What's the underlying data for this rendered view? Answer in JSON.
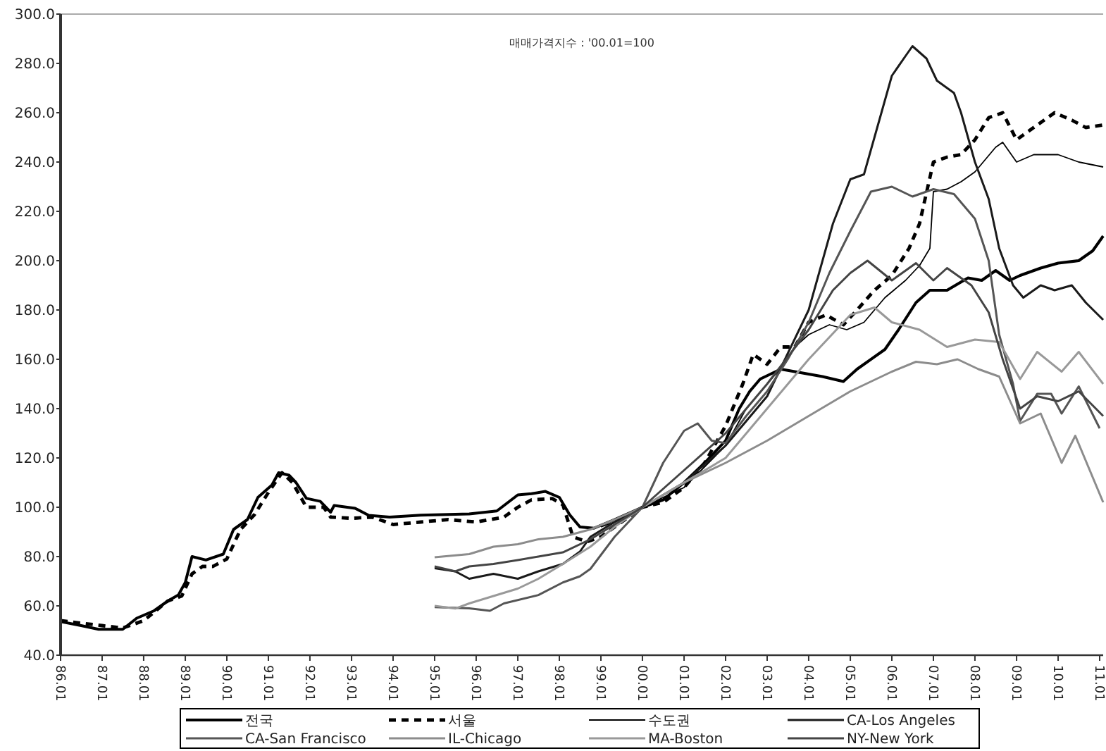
{
  "chart_data": {
    "type": "line",
    "title": "매매가격지수 : '00.01=100",
    "xlim": [
      "1986-01",
      "2011-02"
    ],
    "xticks": [
      {
        "value": "1986-01",
        "label": "86.01"
      },
      {
        "value": "1987-01",
        "label": "87.01"
      },
      {
        "value": "1988-01",
        "label": "88.01"
      },
      {
        "value": "1989-01",
        "label": "89.01"
      },
      {
        "value": "1990-01",
        "label": "90.01"
      },
      {
        "value": "1991-01",
        "label": "91.01"
      },
      {
        "value": "1992-01",
        "label": "92.01"
      },
      {
        "value": "1993-01",
        "label": "93.01"
      },
      {
        "value": "1994-01",
        "label": "94.01"
      },
      {
        "value": "1995-01",
        "label": "95.01"
      },
      {
        "value": "1996-01",
        "label": "96.01"
      },
      {
        "value": "1997-01",
        "label": "97.01"
      },
      {
        "value": "1998-01",
        "label": "98.01"
      },
      {
        "value": "1999-01",
        "label": "99.01"
      },
      {
        "value": "2000-01",
        "label": "00.01"
      },
      {
        "value": "2001-01",
        "label": "01.01"
      },
      {
        "value": "2002-01",
        "label": "02.01"
      },
      {
        "value": "2003-01",
        "label": "03.01"
      },
      {
        "value": "2004-01",
        "label": "04.01"
      },
      {
        "value": "2005-01",
        "label": "05.01"
      },
      {
        "value": "2006-01",
        "label": "06.01"
      },
      {
        "value": "2007-01",
        "label": "07.01"
      },
      {
        "value": "2008-01",
        "label": "08.01"
      },
      {
        "value": "2009-01",
        "label": "09.01"
      },
      {
        "value": "2010-01",
        "label": "10.01"
      },
      {
        "value": "2011-01",
        "label": "11.01"
      }
    ],
    "ylim": [
      40,
      300
    ],
    "yticks": [
      {
        "value": 40,
        "label": "40.0"
      },
      {
        "value": 60,
        "label": "60.0"
      },
      {
        "value": 80,
        "label": "80.0"
      },
      {
        "value": 100,
        "label": "100.0"
      },
      {
        "value": 120,
        "label": "120.0"
      },
      {
        "value": 140,
        "label": "140.0"
      },
      {
        "value": 160,
        "label": "160.0"
      },
      {
        "value": 180,
        "label": "180.0"
      },
      {
        "value": 200,
        "label": "200.0"
      },
      {
        "value": 220,
        "label": "220.0"
      },
      {
        "value": 240,
        "label": "240.0"
      },
      {
        "value": 260,
        "label": "260.0"
      },
      {
        "value": 280,
        "label": "280.0"
      },
      {
        "value": 300,
        "label": "300.0"
      }
    ],
    "grid": false,
    "legend": "bottom",
    "marker": "none",
    "series": [
      {
        "name": "전국",
        "color": "#000000",
        "line_style": "solid",
        "x": [
          "1986-01",
          "1986-07",
          "1986-12",
          "1987-07",
          "1987-11",
          "1988-04",
          "1988-08",
          "1988-11",
          "1989-01",
          "1989-03",
          "1989-07",
          "1989-12",
          "1990-03",
          "1990-07",
          "1990-10",
          "1991-02",
          "1991-04",
          "1991-07",
          "1991-09",
          "1991-12",
          "1992-04",
          "1992-07",
          "1992-08",
          "1993-02",
          "1993-06",
          "1993-12",
          "1994-09",
          "1995-11",
          "1996-07",
          "1997-01",
          "1997-05",
          "1997-09",
          "1998-01",
          "1998-04",
          "1998-07",
          "1998-11",
          "1999-05",
          "2000-01",
          "2000-07",
          "2001-01",
          "2001-07",
          "2002-01",
          "2002-05",
          "2002-08",
          "2002-11",
          "2003-05",
          "2003-09",
          "2004-05",
          "2004-11",
          "2005-03",
          "2005-11",
          "2006-03",
          "2006-08",
          "2006-12",
          "2007-05",
          "2007-11",
          "2008-03",
          "2008-07",
          "2008-11",
          "2009-02",
          "2009-08",
          "2010-01",
          "2010-07",
          "2010-11",
          "2011-02"
        ],
        "values": [
          53.6,
          52,
          50.5,
          50.5,
          55,
          58,
          62,
          64.4,
          69.5,
          80,
          78.6,
          81,
          91,
          95,
          104,
          109,
          114,
          113,
          110,
          103.6,
          102.4,
          98,
          100.7,
          99.6,
          96.7,
          96,
          96.8,
          97.3,
          98.5,
          105,
          105.5,
          106.4,
          104,
          97,
          92,
          91.5,
          95,
          100,
          103,
          110,
          118,
          127,
          140,
          147,
          152,
          156,
          155,
          153,
          151,
          156,
          164,
          172,
          183,
          188,
          188,
          193,
          192,
          196,
          192,
          194,
          197,
          199,
          200,
          204,
          210
        ]
      },
      {
        "name": "서울",
        "color": "#000000",
        "line_style": "dashed",
        "x": [
          "1986-01",
          "1986-07",
          "1987-01",
          "1987-07",
          "1988-01",
          "1988-08",
          "1988-12",
          "1989-03",
          "1989-06",
          "1989-09",
          "1990-01",
          "1990-05",
          "1990-09",
          "1991-01",
          "1991-05",
          "1991-08",
          "1991-12",
          "1992-05",
          "1992-07",
          "1993-01",
          "1993-07",
          "1994-01",
          "1994-09",
          "1995-05",
          "1996-01",
          "1996-09",
          "1997-01",
          "1997-05",
          "1997-11",
          "1998-02",
          "1998-05",
          "1998-09",
          "1999-01",
          "1999-07",
          "2000-01",
          "2000-07",
          "2001-01",
          "2001-07",
          "2002-01",
          "2002-06",
          "2002-09",
          "2003-01",
          "2003-05",
          "2003-09",
          "2004-01",
          "2004-06",
          "2004-11",
          "2005-03",
          "2005-08",
          "2006-01",
          "2006-06",
          "2006-09",
          "2007-01",
          "2007-05",
          "2007-09",
          "2008-01",
          "2008-05",
          "2008-09",
          "2009-01",
          "2009-05",
          "2009-12",
          "2010-05",
          "2010-09",
          "2011-02"
        ],
        "values": [
          54,
          53,
          52,
          51,
          54,
          62,
          64,
          73,
          76,
          76,
          79,
          91,
          97,
          106,
          114,
          110,
          100,
          100,
          96,
          95.5,
          96,
          93,
          94,
          95,
          94,
          96,
          100,
          103,
          103.5,
          101,
          88,
          86,
          88,
          94,
          100,
          102,
          108,
          118,
          133,
          150,
          162,
          158,
          165,
          165,
          175,
          178,
          174,
          180,
          188,
          194,
          205,
          215,
          240,
          242,
          243,
          249,
          258,
          260,
          249,
          253,
          260,
          257,
          254,
          255
        ]
      },
      {
        "name": "수도권",
        "color": "#000000",
        "line_style": "solid",
        "x": [
          "1999-01",
          "1999-07",
          "2000-01",
          "2001-01",
          "2002-01",
          "2002-07",
          "2003-01",
          "2003-06",
          "2003-09",
          "2004-01",
          "2004-07",
          "2004-12",
          "2005-05",
          "2005-11",
          "2006-05",
          "2006-09",
          "2006-12",
          "2007-01",
          "2007-05",
          "2007-09",
          "2008-01",
          "2008-07",
          "2008-09",
          "2009-01",
          "2009-06",
          "2010-01",
          "2010-07",
          "2011-02"
        ],
        "values": [
          92,
          95,
          100,
          108,
          125,
          140,
          150,
          158,
          165,
          170,
          174,
          172,
          175,
          185,
          192,
          198,
          205,
          228,
          229,
          232,
          236,
          246,
          248,
          240,
          243,
          243,
          240,
          238
        ]
      },
      {
        "name": "CA-Los Angeles",
        "color": "#1a1a1a",
        "line_style": "solid",
        "x": [
          "1995-01",
          "1995-07",
          "1995-11",
          "1996-06",
          "1997-01",
          "1997-07",
          "1998-02",
          "1998-07",
          "1998-10",
          "1999-05",
          "2000-01",
          "2001-01",
          "2002-01",
          "2003-01",
          "2004-01",
          "2004-08",
          "2005-01",
          "2005-05",
          "2005-08",
          "2006-01",
          "2006-05",
          "2006-07",
          "2006-11",
          "2007-02",
          "2007-07",
          "2007-09",
          "2008-01",
          "2008-05",
          "2008-08",
          "2008-12",
          "2009-03",
          "2009-08",
          "2009-12",
          "2010-05",
          "2010-09",
          "2011-02"
        ],
        "values": [
          75.3,
          74,
          71,
          73,
          71,
          74,
          77,
          82,
          88,
          94,
          100,
          110,
          125,
          145,
          180,
          215,
          233,
          235,
          250,
          275,
          283,
          287,
          282,
          273,
          268,
          260,
          240,
          225,
          205,
          190,
          185,
          190,
          188,
          190,
          183,
          176
        ]
      },
      {
        "name": "CA-San Francisco",
        "color": "#555555",
        "line_style": "solid",
        "x": [
          "1995-01",
          "1995-11",
          "1996-05",
          "1996-09",
          "1997-07",
          "1998-02",
          "1998-07",
          "1998-10",
          "1999-05",
          "2000-01",
          "2000-07",
          "2001-01",
          "2001-05",
          "2001-09",
          "2002-01",
          "2002-07",
          "2003-01",
          "2003-07",
          "2004-01",
          "2004-07",
          "2005-01",
          "2005-07",
          "2006-01",
          "2006-07",
          "2007-01",
          "2007-07",
          "2008-01",
          "2008-05",
          "2008-08",
          "2008-12",
          "2009-02",
          "2009-07",
          "2009-11",
          "2010-02",
          "2010-07",
          "2011-01"
        ],
        "values": [
          59.5,
          59,
          58,
          61,
          64.4,
          69.5,
          72,
          75,
          88,
          100,
          118,
          131,
          134,
          127,
          126,
          137,
          147,
          160,
          175,
          195,
          212,
          228,
          230,
          226,
          229,
          227,
          217,
          200,
          170,
          150,
          135,
          146,
          146,
          138,
          149,
          132
        ]
      },
      {
        "name": "IL-Chicago",
        "color": "#8c8c8c",
        "line_style": "solid",
        "x": [
          "1995-01",
          "1995-11",
          "1996-06",
          "1997-01",
          "1997-07",
          "1998-02",
          "1998-10",
          "1999-05",
          "2000-01",
          "2001-01",
          "2002-01",
          "2003-01",
          "2004-01",
          "2005-01",
          "2006-01",
          "2006-08",
          "2007-02",
          "2007-08",
          "2008-02",
          "2008-08",
          "2009-02",
          "2009-08",
          "2010-02",
          "2010-06",
          "2011-02"
        ],
        "values": [
          79.7,
          81,
          84,
          85,
          87,
          88,
          91,
          95,
          100,
          110,
          118,
          127,
          137,
          147,
          155,
          159,
          158,
          160,
          156,
          153,
          134,
          138,
          118,
          129,
          102
        ]
      },
      {
        "name": "MA-Boston",
        "color": "#999999",
        "line_style": "solid",
        "x": [
          "1995-01",
          "1995-07",
          "1995-11",
          "1996-06",
          "1997-01",
          "1997-07",
          "1998-02",
          "1998-10",
          "1999-05",
          "2000-01",
          "2001-01",
          "2002-01",
          "2003-01",
          "2004-01",
          "2005-01",
          "2005-08",
          "2006-01",
          "2006-09",
          "2007-05",
          "2008-01",
          "2008-08",
          "2009-02",
          "2009-07",
          "2010-02",
          "2010-07",
          "2011-02"
        ],
        "values": [
          60,
          58.9,
          61,
          64,
          67,
          71,
          77,
          84,
          92,
          100,
          110,
          120,
          140,
          160,
          178,
          181,
          175,
          172,
          165,
          168,
          167,
          152,
          163,
          155,
          163,
          150
        ]
      },
      {
        "name": "NY-New York",
        "color": "#444444",
        "line_style": "solid",
        "x": [
          "1995-01",
          "1995-07",
          "1995-11",
          "1996-06",
          "1997-01",
          "1997-07",
          "1998-02",
          "1998-10",
          "1999-05",
          "2000-01",
          "2001-01",
          "2002-01",
          "2003-01",
          "2004-01",
          "2004-08",
          "2005-01",
          "2005-06",
          "2006-01",
          "2006-08",
          "2007-01",
          "2007-05",
          "2007-12",
          "2008-05",
          "2008-09",
          "2009-02",
          "2009-07",
          "2010-01",
          "2010-07",
          "2011-02"
        ],
        "values": [
          76,
          74,
          76,
          77,
          78.6,
          80,
          81.7,
          87,
          93,
          100,
          115,
          130,
          150,
          172,
          188,
          195,
          200,
          192,
          199,
          192,
          197,
          190,
          179,
          160,
          140,
          145,
          143,
          147,
          137
        ]
      }
    ]
  }
}
